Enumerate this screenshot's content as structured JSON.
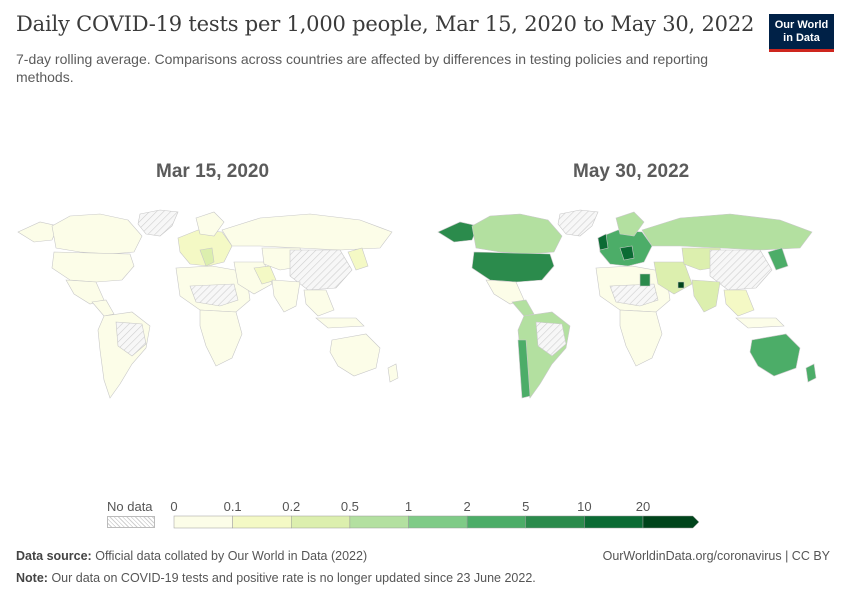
{
  "header": {
    "title": "Daily COVID-19 tests per 1,000 people, Mar 15, 2020 to May 30, 2022",
    "subtitle": "7-day rolling average. Comparisons across countries are affected by differences in testing policies and reporting methods.",
    "logo_line1": "Our World",
    "logo_line2": "in Data",
    "logo_bg": "#002147",
    "logo_accent": "#ce261e"
  },
  "maps": {
    "left": {
      "title": "Mar 15, 2020"
    },
    "right": {
      "title": "May 30, 2022"
    }
  },
  "legend": {
    "no_data_label": "No data",
    "ticks": [
      "0",
      "0.1",
      "0.2",
      "0.5",
      "1",
      "2",
      "5",
      "10",
      "20"
    ],
    "colors": [
      "#fcfde8",
      "#f4f9c5",
      "#dcefae",
      "#b3e0a0",
      "#7fcb87",
      "#4cad68",
      "#2b8b4c",
      "#0b6b34",
      "#00441b"
    ]
  },
  "footer": {
    "source_label": "Data source:",
    "source_text": "Official data collated by Our World in Data (2022)",
    "url": "OurWorldinData.org/coronavirus | CC BY",
    "note_label": "Note:",
    "note_text": "Our data on COVID-19 tests and positive rate is no longer updated since 23 June 2022."
  }
}
